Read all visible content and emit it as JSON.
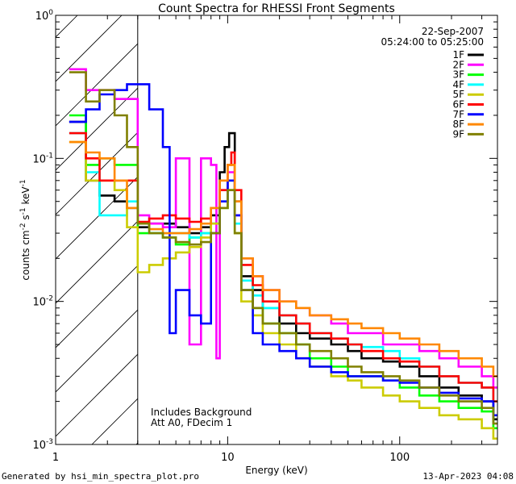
{
  "chart_data": {
    "type": "line",
    "title": "Count Spectra for RHESSI Front Segments",
    "xlabel": "Energy (keV)",
    "ylabel_prefix": "counts cm",
    "ylabel_sup1": "-2",
    "ylabel_mid": " s",
    "ylabel_sup2": "-1",
    "ylabel_mid2": " keV",
    "ylabel_sup3": "-1",
    "xscale": "log",
    "yscale": "log",
    "xlim": [
      1,
      370
    ],
    "ylim": [
      0.001,
      1
    ],
    "x_ticks": [
      {
        "value": 1,
        "label": "1"
      },
      {
        "value": 10,
        "label": "10"
      },
      {
        "value": 100,
        "label": "100"
      }
    ],
    "y_ticks": [
      {
        "value": 1,
        "base": "10",
        "exp": "0"
      },
      {
        "value": 0.1,
        "base": "10",
        "exp": "-1"
      },
      {
        "value": 0.01,
        "base": "10",
        "exp": "-2"
      },
      {
        "value": 0.001,
        "base": "10",
        "exp": "-3"
      }
    ],
    "date": "22-Sep-2007",
    "time_range": "05:24:00 to 05:25:00",
    "annotation_line1": "Includes Background",
    "annotation_line2": "Att A0, FDecim 1",
    "hatched_region_max_kev": 3,
    "series": [
      {
        "name": "1F",
        "color": "#000000",
        "points": [
          [
            1.2,
            0.18
          ],
          [
            1.5,
            0.07
          ],
          [
            1.8,
            0.055
          ],
          [
            2.2,
            0.05
          ],
          [
            2.6,
            0.045
          ],
          [
            3.0,
            0.033
          ],
          [
            3.5,
            0.035
          ],
          [
            4.2,
            0.035
          ],
          [
            5,
            0.033
          ],
          [
            6,
            0.03
          ],
          [
            7,
            0.033
          ],
          [
            8,
            0.04
          ],
          [
            9,
            0.08
          ],
          [
            9.6,
            0.12
          ],
          [
            10.2,
            0.15
          ],
          [
            11,
            0.05
          ],
          [
            12,
            0.015
          ],
          [
            14,
            0.012
          ],
          [
            16,
            0.009
          ],
          [
            20,
            0.007
          ],
          [
            25,
            0.006
          ],
          [
            30,
            0.0055
          ],
          [
            40,
            0.005
          ],
          [
            50,
            0.0045
          ],
          [
            60,
            0.004
          ],
          [
            80,
            0.0038
          ],
          [
            100,
            0.0035
          ],
          [
            130,
            0.003
          ],
          [
            170,
            0.0025
          ],
          [
            220,
            0.0022
          ],
          [
            300,
            0.002
          ],
          [
            350,
            0.0015
          ]
        ]
      },
      {
        "name": "2F",
        "color": "#ff00ff",
        "points": [
          [
            1.2,
            0.42
          ],
          [
            1.5,
            0.3
          ],
          [
            1.8,
            0.3
          ],
          [
            2.2,
            0.26
          ],
          [
            2.6,
            0.26
          ],
          [
            3.0,
            0.04
          ],
          [
            3.5,
            0.035
          ],
          [
            4.2,
            0.033
          ],
          [
            5,
            0.1
          ],
          [
            5.6,
            0.1
          ],
          [
            6,
            0.005
          ],
          [
            7,
            0.1
          ],
          [
            8,
            0.09
          ],
          [
            8.6,
            0.004
          ],
          [
            9,
            0.06
          ],
          [
            10,
            0.08
          ],
          [
            11,
            0.04
          ],
          [
            12,
            0.02
          ],
          [
            14,
            0.015
          ],
          [
            16,
            0.012
          ],
          [
            20,
            0.01
          ],
          [
            25,
            0.009
          ],
          [
            30,
            0.008
          ],
          [
            40,
            0.007
          ],
          [
            50,
            0.006
          ],
          [
            60,
            0.006
          ],
          [
            80,
            0.005
          ],
          [
            100,
            0.005
          ],
          [
            130,
            0.0045
          ],
          [
            170,
            0.004
          ],
          [
            220,
            0.0035
          ],
          [
            300,
            0.003
          ],
          [
            350,
            0.0025
          ]
        ]
      },
      {
        "name": "3F",
        "color": "#00ff00",
        "points": [
          [
            1.2,
            0.2
          ],
          [
            1.5,
            0.09
          ],
          [
            1.8,
            0.1
          ],
          [
            2.2,
            0.09
          ],
          [
            2.6,
            0.09
          ],
          [
            3.0,
            0.03
          ],
          [
            3.5,
            0.03
          ],
          [
            4.2,
            0.028
          ],
          [
            5,
            0.025
          ],
          [
            6,
            0.028
          ],
          [
            7,
            0.03
          ],
          [
            8,
            0.035
          ],
          [
            9,
            0.045
          ],
          [
            10,
            0.06
          ],
          [
            11,
            0.03
          ],
          [
            12,
            0.012
          ],
          [
            14,
            0.009
          ],
          [
            16,
            0.007
          ],
          [
            20,
            0.006
          ],
          [
            25,
            0.005
          ],
          [
            30,
            0.004
          ],
          [
            40,
            0.0035
          ],
          [
            50,
            0.003
          ],
          [
            60,
            0.003
          ],
          [
            80,
            0.0028
          ],
          [
            100,
            0.0025
          ],
          [
            130,
            0.0022
          ],
          [
            170,
            0.002
          ],
          [
            220,
            0.0018
          ],
          [
            300,
            0.0017
          ],
          [
            350,
            0.0013
          ]
        ]
      },
      {
        "name": "4F",
        "color": "#00ffff",
        "points": [
          [
            1.2,
            0.15
          ],
          [
            1.5,
            0.08
          ],
          [
            1.8,
            0.04
          ],
          [
            2.2,
            0.04
          ],
          [
            2.6,
            0.05
          ],
          [
            3.0,
            0.035
          ],
          [
            3.5,
            0.03
          ],
          [
            4.2,
            0.03
          ],
          [
            5,
            0.03
          ],
          [
            6,
            0.028
          ],
          [
            7,
            0.03
          ],
          [
            8,
            0.035
          ],
          [
            9,
            0.05
          ],
          [
            10,
            0.07
          ],
          [
            11,
            0.035
          ],
          [
            12,
            0.014
          ],
          [
            14,
            0.011
          ],
          [
            16,
            0.009
          ],
          [
            20,
            0.008
          ],
          [
            25,
            0.007
          ],
          [
            30,
            0.006
          ],
          [
            40,
            0.0055
          ],
          [
            50,
            0.005
          ],
          [
            60,
            0.0048
          ],
          [
            80,
            0.0045
          ],
          [
            100,
            0.004
          ],
          [
            130,
            0.0035
          ],
          [
            170,
            0.003
          ],
          [
            220,
            0.0027
          ],
          [
            300,
            0.0025
          ],
          [
            350,
            0.002
          ]
        ]
      },
      {
        "name": "5F",
        "color": "#cccc00",
        "points": [
          [
            1.2,
            0.13
          ],
          [
            1.5,
            0.07
          ],
          [
            1.8,
            0.07
          ],
          [
            2.2,
            0.06
          ],
          [
            2.6,
            0.033
          ],
          [
            3.0,
            0.016
          ],
          [
            3.5,
            0.018
          ],
          [
            4.2,
            0.02
          ],
          [
            5,
            0.022
          ],
          [
            6,
            0.024
          ],
          [
            7,
            0.028
          ],
          [
            8,
            0.035
          ],
          [
            9,
            0.045
          ],
          [
            10,
            0.06
          ],
          [
            11,
            0.03
          ],
          [
            12,
            0.01
          ],
          [
            14,
            0.008
          ],
          [
            16,
            0.006
          ],
          [
            20,
            0.005
          ],
          [
            25,
            0.004
          ],
          [
            30,
            0.0035
          ],
          [
            40,
            0.003
          ],
          [
            50,
            0.0028
          ],
          [
            60,
            0.0025
          ],
          [
            80,
            0.0022
          ],
          [
            100,
            0.002
          ],
          [
            130,
            0.0018
          ],
          [
            170,
            0.0016
          ],
          [
            220,
            0.0015
          ],
          [
            300,
            0.0013
          ],
          [
            350,
            0.0011
          ]
        ]
      },
      {
        "name": "6F",
        "color": "#ff0000",
        "points": [
          [
            1.2,
            0.15
          ],
          [
            1.5,
            0.1
          ],
          [
            1.8,
            0.07
          ],
          [
            2.2,
            0.07
          ],
          [
            2.6,
            0.07
          ],
          [
            3.0,
            0.036
          ],
          [
            3.5,
            0.038
          ],
          [
            4.2,
            0.04
          ],
          [
            5,
            0.038
          ],
          [
            6,
            0.036
          ],
          [
            7,
            0.038
          ],
          [
            8,
            0.045
          ],
          [
            9,
            0.06
          ],
          [
            10,
            0.09
          ],
          [
            10.5,
            0.11
          ],
          [
            11,
            0.06
          ],
          [
            12,
            0.018
          ],
          [
            14,
            0.013
          ],
          [
            16,
            0.01
          ],
          [
            20,
            0.008
          ],
          [
            25,
            0.007
          ],
          [
            30,
            0.006
          ],
          [
            40,
            0.0055
          ],
          [
            50,
            0.005
          ],
          [
            60,
            0.0045
          ],
          [
            80,
            0.004
          ],
          [
            100,
            0.0038
          ],
          [
            130,
            0.0035
          ],
          [
            170,
            0.003
          ],
          [
            220,
            0.0027
          ],
          [
            300,
            0.0025
          ],
          [
            350,
            0.002
          ]
        ]
      },
      {
        "name": "7F",
        "color": "#0000ff",
        "points": [
          [
            1.2,
            0.18
          ],
          [
            1.5,
            0.22
          ],
          [
            1.8,
            0.28
          ],
          [
            2.2,
            0.3
          ],
          [
            2.6,
            0.33
          ],
          [
            3.0,
            0.33
          ],
          [
            3.5,
            0.22
          ],
          [
            4.2,
            0.12
          ],
          [
            4.6,
            0.006
          ],
          [
            5,
            0.012
          ],
          [
            6,
            0.008
          ],
          [
            7,
            0.007
          ],
          [
            8,
            0.03
          ],
          [
            9,
            0.05
          ],
          [
            10,
            0.07
          ],
          [
            11,
            0.04
          ],
          [
            12,
            0.012
          ],
          [
            14,
            0.006
          ],
          [
            16,
            0.005
          ],
          [
            20,
            0.0045
          ],
          [
            25,
            0.004
          ],
          [
            30,
            0.0035
          ],
          [
            40,
            0.0032
          ],
          [
            50,
            0.003
          ],
          [
            60,
            0.003
          ],
          [
            80,
            0.0028
          ],
          [
            100,
            0.0027
          ],
          [
            130,
            0.0025
          ],
          [
            170,
            0.0023
          ],
          [
            220,
            0.0021
          ],
          [
            300,
            0.002
          ],
          [
            350,
            0.0016
          ]
        ]
      },
      {
        "name": "8F",
        "color": "#ff8800",
        "points": [
          [
            1.2,
            0.13
          ],
          [
            1.5,
            0.11
          ],
          [
            1.8,
            0.1
          ],
          [
            2.2,
            0.07
          ],
          [
            2.6,
            0.045
          ],
          [
            3.0,
            0.035
          ],
          [
            3.5,
            0.032
          ],
          [
            4.2,
            0.03
          ],
          [
            5,
            0.03
          ],
          [
            6,
            0.032
          ],
          [
            7,
            0.035
          ],
          [
            8,
            0.045
          ],
          [
            9,
            0.07
          ],
          [
            10,
            0.09
          ],
          [
            11,
            0.05
          ],
          [
            12,
            0.02
          ],
          [
            14,
            0.015
          ],
          [
            16,
            0.012
          ],
          [
            20,
            0.01
          ],
          [
            25,
            0.009
          ],
          [
            30,
            0.008
          ],
          [
            40,
            0.0075
          ],
          [
            50,
            0.007
          ],
          [
            60,
            0.0065
          ],
          [
            80,
            0.006
          ],
          [
            100,
            0.0055
          ],
          [
            130,
            0.005
          ],
          [
            170,
            0.0045
          ],
          [
            220,
            0.004
          ],
          [
            300,
            0.0035
          ],
          [
            350,
            0.003
          ]
        ]
      },
      {
        "name": "9F",
        "color": "#808000",
        "points": [
          [
            1.2,
            0.4
          ],
          [
            1.5,
            0.25
          ],
          [
            1.8,
            0.3
          ],
          [
            2.2,
            0.2
          ],
          [
            2.6,
            0.12
          ],
          [
            3.0,
            0.035
          ],
          [
            3.5,
            0.03
          ],
          [
            4.2,
            0.028
          ],
          [
            5,
            0.026
          ],
          [
            6,
            0.025
          ],
          [
            7,
            0.026
          ],
          [
            8,
            0.03
          ],
          [
            9,
            0.045
          ],
          [
            10,
            0.06
          ],
          [
            11,
            0.03
          ],
          [
            12,
            0.012
          ],
          [
            14,
            0.009
          ],
          [
            16,
            0.007
          ],
          [
            20,
            0.006
          ],
          [
            25,
            0.005
          ],
          [
            30,
            0.0045
          ],
          [
            40,
            0.004
          ],
          [
            50,
            0.0035
          ],
          [
            60,
            0.0032
          ],
          [
            80,
            0.003
          ],
          [
            100,
            0.0028
          ],
          [
            130,
            0.0025
          ],
          [
            170,
            0.0022
          ],
          [
            220,
            0.002
          ],
          [
            300,
            0.0018
          ],
          [
            350,
            0.0014
          ]
        ]
      }
    ]
  },
  "footer": {
    "generated_by": "Generated by hsi_min_spectra_plot.pro",
    "timestamp": "13-Apr-2023 04:08"
  }
}
